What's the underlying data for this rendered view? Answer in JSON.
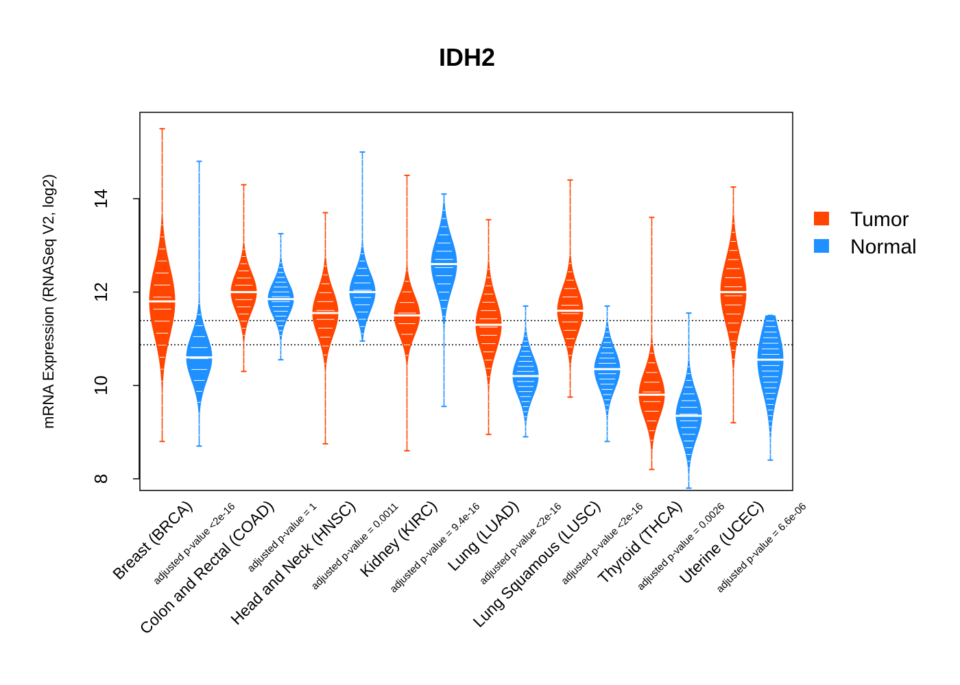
{
  "chart_data": {
    "type": "beanplot",
    "title": "IDH2",
    "ylabel": "mRNA Expression (RNASeq V2, log2)",
    "ylim": [
      7.75,
      15.85
    ],
    "yticks": [
      "8",
      "10",
      "12",
      "14"
    ],
    "reference_lines": [
      10.87,
      11.39
    ],
    "legend": {
      "placement": "right",
      "items": [
        {
          "label": "Tumor",
          "color": "#ff4500"
        },
        {
          "label": "Normal",
          "color": "#1e90ff"
        }
      ]
    },
    "categories": [
      {
        "label": "Breast (BRCA)",
        "pvalue": "adjusted p-value <2e-16",
        "tumor": {
          "median": 11.8,
          "min": 8.8,
          "max": 15.5,
          "q1": 11.2,
          "q3": 12.3
        },
        "normal": {
          "median": 10.6,
          "min": 8.7,
          "max": 14.8,
          "q1": 10.2,
          "q3": 10.9
        }
      },
      {
        "label": "Colon and Rectal (COAD)",
        "pvalue": "adjusted p-value = 1",
        "tumor": {
          "median": 12.0,
          "min": 10.3,
          "max": 14.3,
          "q1": 11.7,
          "q3": 12.3
        },
        "normal": {
          "median": 11.85,
          "min": 10.55,
          "max": 13.25,
          "q1": 11.6,
          "q3": 12.1
        }
      },
      {
        "label": "Head and Neck (HNSC)",
        "pvalue": "adjusted p-value = 0.0011",
        "tumor": {
          "median": 11.55,
          "min": 8.75,
          "max": 13.7,
          "q1": 11.2,
          "q3": 11.9
        },
        "normal": {
          "median": 12.0,
          "min": 10.95,
          "max": 15.0,
          "q1": 11.7,
          "q3": 12.3
        }
      },
      {
        "label": "Kidney (KIRC)",
        "pvalue": "adjusted p-value = 9.4e-16",
        "tumor": {
          "median": 11.5,
          "min": 8.6,
          "max": 14.5,
          "q1": 11.2,
          "q3": 11.8
        },
        "normal": {
          "median": 12.6,
          "min": 9.55,
          "max": 14.1,
          "q1": 12.2,
          "q3": 13.0
        }
      },
      {
        "label": "Lung (LUAD)",
        "pvalue": "adjusted p-value <2e-16",
        "tumor": {
          "median": 11.3,
          "min": 8.95,
          "max": 13.55,
          "q1": 10.9,
          "q3": 11.7
        },
        "normal": {
          "median": 10.2,
          "min": 8.9,
          "max": 11.7,
          "q1": 9.9,
          "q3": 10.5
        }
      },
      {
        "label": "Lung Squamous (LUSC)",
        "pvalue": "adjusted p-value <2e-16",
        "tumor": {
          "median": 11.6,
          "min": 9.75,
          "max": 14.4,
          "q1": 11.2,
          "q3": 11.9
        },
        "normal": {
          "median": 10.35,
          "min": 8.8,
          "max": 11.7,
          "q1": 10.0,
          "q3": 10.6
        }
      },
      {
        "label": "Thyroid (THCA)",
        "pvalue": "adjusted p-value = 0.0026",
        "tumor": {
          "median": 9.8,
          "min": 8.2,
          "max": 13.6,
          "q1": 9.4,
          "q3": 10.1
        },
        "normal": {
          "median": 9.35,
          "min": 7.8,
          "max": 11.55,
          "q1": 9.0,
          "q3": 9.7
        }
      },
      {
        "label": "Uterine (UCEC)",
        "pvalue": "adjusted p-value = 6.6e-06",
        "tumor": {
          "median": 12.0,
          "min": 9.2,
          "max": 14.25,
          "q1": 11.5,
          "q3": 12.5
        },
        "normal": {
          "median": 10.55,
          "min": 8.4,
          "max": 11.5,
          "q1": 9.9,
          "q3": 10.9
        }
      }
    ]
  }
}
